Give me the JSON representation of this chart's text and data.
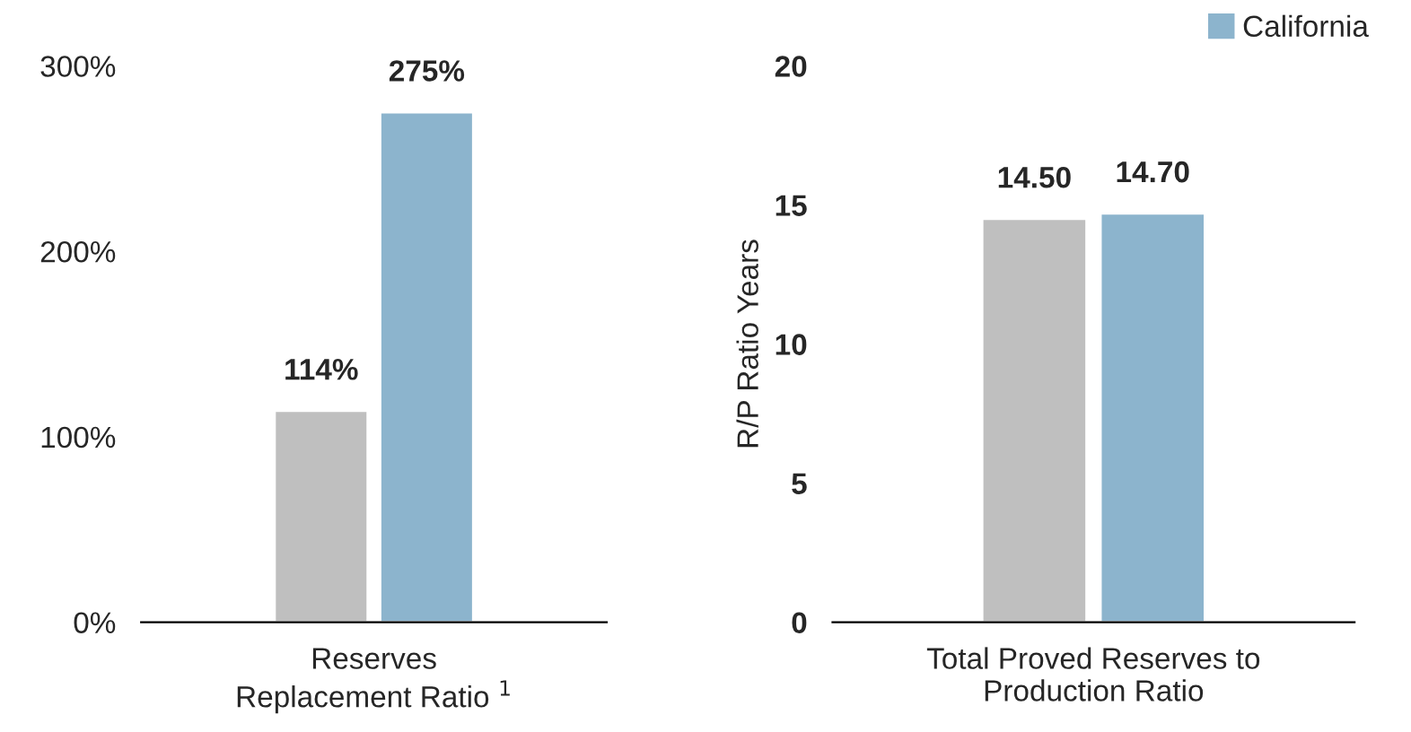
{
  "chart_data": [
    {
      "type": "bar",
      "categories": [
        "Reserves\nReplacement Ratio $^{1}$"
      ],
      "series": [
        {
          "color": "#bfbfbf",
          "values": [
            114
          ],
          "value_labels": [
            "114%"
          ]
        },
        {
          "color": "#8cb4cd",
          "values": [
            275
          ],
          "value_labels": [
            "275%"
          ]
        }
      ],
      "ylim": [
        0,
        300
      ],
      "yticks": [
        {
          "value": 0,
          "label": "0%"
        },
        {
          "value": 100,
          "label": "100%"
        },
        {
          "value": 200,
          "label": "200%"
        },
        {
          "value": 300,
          "label": "300%"
        }
      ],
      "grid": false,
      "legend": false
    },
    {
      "type": "bar",
      "categories": [
        "Total Proved Reserves to\nProduction Ratio"
      ],
      "ylabel": "R/P Ratio Years",
      "series": [
        {
          "color": "#bfbfbf",
          "values": [
            14.5
          ],
          "value_labels": [
            "14.50"
          ]
        },
        {
          "name": "California",
          "color": "#8cb4cd",
          "values": [
            14.7
          ],
          "value_labels": [
            "14.70"
          ]
        }
      ],
      "ylim": [
        0,
        20
      ],
      "yticks": [
        0,
        5,
        10,
        15,
        20
      ],
      "grid": false,
      "legend": "top right"
    }
  ]
}
